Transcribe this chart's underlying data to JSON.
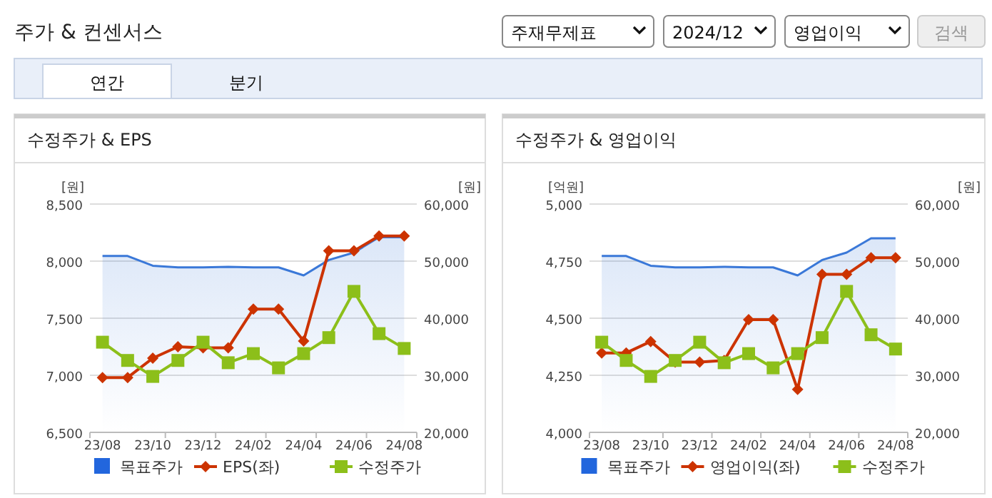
{
  "chart_data": [
    {
      "type": "other",
      "title": "주가 & 컨센서스",
      "annotations": [
        "주재무제표",
        "2024/12",
        "영업이익",
        "검색",
        "연간",
        "분기"
      ]
    },
    {
      "type": "line",
      "title": "수정주가 & EPS",
      "ylabel": "[원]",
      "y2label": "[원]",
      "categories": [
        "23/08",
        null,
        "23/10",
        null,
        "23/12",
        null,
        "24/02",
        null,
        "24/04",
        null,
        "24/06",
        null,
        "24/08"
      ],
      "ylim": [
        6500,
        8500
      ],
      "yticks": [
        {
          "value": 6500,
          "label": "6,500"
        },
        {
          "value": 7000,
          "label": "7,000"
        },
        {
          "value": 7500,
          "label": "7,500"
        },
        {
          "value": 8000,
          "label": "8,000"
        },
        {
          "value": 8500,
          "label": "8,500"
        }
      ],
      "y2lim": [
        20000,
        60000
      ],
      "y2ticks": [
        {
          "value": 20000,
          "label": "20,000"
        },
        {
          "value": 30000,
          "label": "30,000"
        },
        {
          "value": 40000,
          "label": "40,000"
        },
        {
          "value": 50000,
          "label": "50,000"
        },
        {
          "value": 60000,
          "label": "60,000"
        }
      ],
      "grid": "y",
      "legend": "bottom",
      "series": [
        {
          "name": "목표주가",
          "type": "area",
          "axis": "y2",
          "color": "#3a78d8",
          "values": [
            50900,
            50900,
            49200,
            48900,
            48900,
            49000,
            48900,
            48900,
            47500,
            50200,
            51500,
            54200,
            54200
          ]
        },
        {
          "name": "EPS(좌)",
          "type": "line",
          "marker": "diamond",
          "color": "#cc3300",
          "values": [
            6980,
            6980,
            7150,
            7250,
            7240,
            7240,
            7580,
            7580,
            7300,
            8090,
            8090,
            8220,
            8220
          ]
        },
        {
          "name": "수정주가",
          "type": "line",
          "marker": "square",
          "axis": "y2",
          "color": "#8cbf1a",
          "values": [
            35800,
            32600,
            29800,
            32600,
            35800,
            32200,
            33800,
            31300,
            33800,
            36600,
            44700,
            37300,
            34700
          ]
        }
      ]
    },
    {
      "type": "line",
      "title": "수정주가 & 영업이익",
      "ylabel": "[억원]",
      "y2label": "[원]",
      "categories": [
        "23/08",
        null,
        "23/10",
        null,
        "23/12",
        null,
        "24/02",
        null,
        "24/04",
        null,
        "24/06",
        null,
        "24/08"
      ],
      "ylim": [
        4000,
        5000
      ],
      "yticks": [
        {
          "value": 4000,
          "label": "4,000"
        },
        {
          "value": 4250,
          "label": "4,250"
        },
        {
          "value": 4500,
          "label": "4,500"
        },
        {
          "value": 4750,
          "label": "4,750"
        },
        {
          "value": 5000,
          "label": "5,000"
        }
      ],
      "y2lim": [
        20000,
        60000
      ],
      "y2ticks": [
        {
          "value": 20000,
          "label": "20,000"
        },
        {
          "value": 30000,
          "label": "30,000"
        },
        {
          "value": 40000,
          "label": "40,000"
        },
        {
          "value": 50000,
          "label": "50,000"
        },
        {
          "value": 60000,
          "label": "60,000"
        }
      ],
      "grid": "y",
      "legend": "bottom",
      "series": [
        {
          "name": "목표주가",
          "type": "area",
          "axis": "y2",
          "color": "#3a78d8",
          "values": [
            50900,
            50900,
            49200,
            48900,
            48900,
            49000,
            48900,
            48900,
            47500,
            50200,
            51500,
            54000,
            54000
          ]
        },
        {
          "name": "영업이익(좌)",
          "type": "line",
          "marker": "diamond",
          "color": "#cc3300",
          "values": [
            4348,
            4348,
            4398,
            4308,
            4308,
            4315,
            4494,
            4494,
            4188,
            4692,
            4692,
            4765,
            4765
          ]
        },
        {
          "name": "수정주가",
          "type": "line",
          "marker": "square",
          "axis": "y2",
          "color": "#8cbf1a",
          "values": [
            35800,
            32600,
            29800,
            32600,
            35800,
            32200,
            33800,
            31300,
            33800,
            36600,
            44700,
            37100,
            34600
          ]
        }
      ]
    }
  ]
}
